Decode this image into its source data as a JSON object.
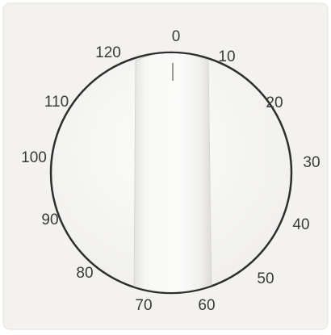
{
  "dial": {
    "labels": [
      "0",
      "10",
      "20",
      "30",
      "40",
      "50",
      "60",
      "70",
      "80",
      "90",
      "100",
      "110",
      "120"
    ]
  }
}
